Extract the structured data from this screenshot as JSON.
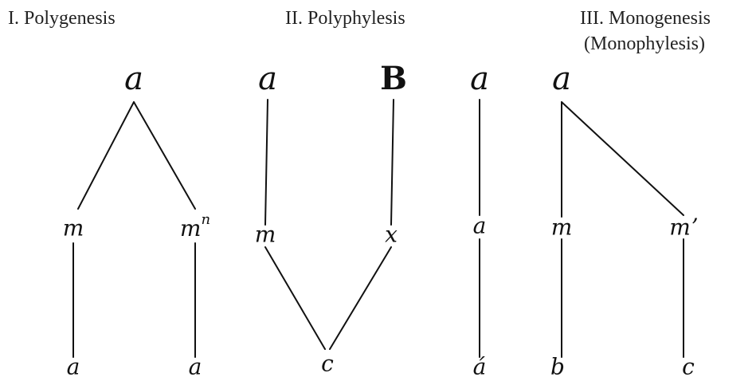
{
  "headings": {
    "polygenesis": "I.  Polygenesis",
    "polyphylesis": "II.  Polyphylesis",
    "monogenesis": "III.  Monogenesis",
    "monophylesis": "(Monophylesis)"
  },
  "polygenesis": {
    "root": "a",
    "left_mid": "m",
    "right_mid": "m",
    "right_mid_sup": "n",
    "left_bottom": "a",
    "right_bottom": "a"
  },
  "polyphylesis": {
    "left_top": "a",
    "right_top": "B",
    "left_mid": "m",
    "right_mid": "x",
    "bottom": "c"
  },
  "monogenesis_chain": {
    "top": "a",
    "mid": "a",
    "bottom": "á"
  },
  "monophylesis": {
    "root": "a",
    "left_mid": "m",
    "right_mid": "mʼ",
    "left_bottom": "b",
    "right_bottom": "c"
  }
}
